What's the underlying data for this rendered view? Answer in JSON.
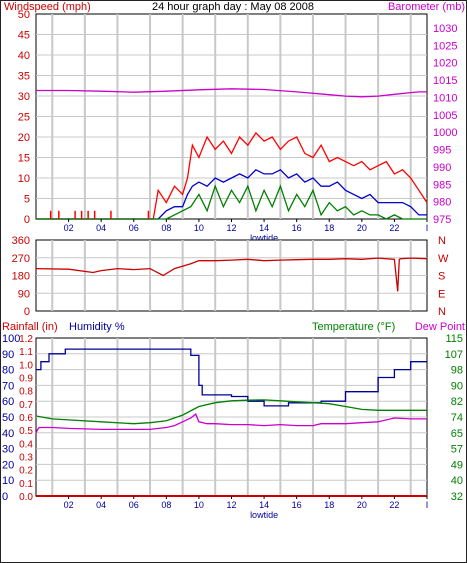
{
  "title": "24 hour graph day : May 08 2008",
  "colors": {
    "red": "#cc0000",
    "magenta": "#cc00cc",
    "green": "#008000",
    "blue": "#000099",
    "dark": "#000000",
    "windspeed": "#ff0000",
    "gust_green": "#008000",
    "avg_blue": "#0000cc",
    "pressure": "#cc00cc",
    "direction": "#cc0000",
    "humidity": "#000099",
    "temperature": "#008000",
    "dewpoint": "#cc00cc",
    "rainfall": "#cc0000",
    "grid": "#c8c8c8"
  },
  "x_tick_labels": [
    "02",
    "04",
    "06",
    "08",
    "10",
    "12",
    "14",
    "16",
    "18",
    "20",
    "22",
    "I"
  ],
  "x_sub_label": "lowtide",
  "chart_data": [
    {
      "type": "line",
      "panel": "wind-pressure",
      "left_axis_label": "Windspeed (mph)",
      "right_axis_label": "Barometer (mb)",
      "left_ticks": [
        "50",
        "45",
        "40",
        "35",
        "30",
        "25",
        "20",
        "15",
        "10",
        "5",
        "0"
      ],
      "right_ticks": [
        "1030",
        "1025",
        "1020",
        "1015",
        "1010",
        "1005",
        "1000",
        "995",
        "990",
        "985",
        "980",
        "975"
      ],
      "left_range": [
        0,
        50
      ],
      "right_range": [
        975,
        1030
      ],
      "x_range_hours": [
        0,
        24
      ],
      "series": [
        {
          "key": "barometer",
          "axis": "right",
          "x": [
            0,
            2,
            4,
            6,
            8,
            10,
            12,
            14,
            16,
            18,
            19,
            20,
            21,
            22,
            23,
            23.5,
            24
          ],
          "values": [
            1012,
            1012,
            1011.8,
            1011.5,
            1011.8,
            1012.2,
            1012.5,
            1012.3,
            1011.6,
            1010.8,
            1010.4,
            1010.2,
            1010.4,
            1010.9,
            1011.4,
            1011.6,
            1011.6
          ]
        },
        {
          "key": "gust",
          "axis": "left",
          "x": [
            0,
            2,
            4,
            6,
            7.2,
            7.5,
            8,
            8.5,
            9,
            9.3,
            9.6,
            10,
            10.5,
            11,
            11.5,
            12,
            12.5,
            13,
            13.5,
            14,
            14.5,
            15,
            15.5,
            16,
            16.5,
            17,
            17.5,
            18,
            18.5,
            19,
            19.5,
            20,
            20.5,
            21,
            21.5,
            22,
            22.5,
            23,
            23.5,
            24
          ],
          "values": [
            0,
            0,
            0,
            0,
            0,
            7,
            4,
            8,
            6,
            10,
            18,
            15,
            20,
            17,
            19,
            16,
            20,
            18,
            21,
            19,
            20,
            17,
            19,
            20,
            16,
            15,
            18,
            14,
            15,
            14,
            13,
            14,
            12,
            13,
            14,
            11,
            12,
            10,
            7,
            4
          ]
        },
        {
          "key": "average",
          "axis": "left",
          "x": [
            0,
            6,
            7.5,
            8,
            8.5,
            9,
            9.3,
            9.6,
            10,
            10.5,
            11,
            11.5,
            12,
            12.5,
            13,
            13.5,
            14,
            14.5,
            15,
            15.5,
            16,
            16.5,
            17,
            17.5,
            18,
            18.5,
            19,
            19.5,
            20,
            20.5,
            21,
            21.5,
            22,
            22.5,
            23,
            23.5,
            24
          ],
          "values": [
            0,
            0,
            0,
            2,
            3,
            3,
            6,
            8,
            9,
            8,
            10,
            9,
            10,
            11,
            10,
            12,
            11,
            11,
            12,
            10,
            11,
            9,
            10,
            8,
            8,
            9,
            7,
            6,
            5,
            6,
            4,
            4,
            4,
            4,
            3,
            1,
            1
          ]
        },
        {
          "key": "windspeed",
          "axis": "left",
          "x": [
            0,
            7.5,
            8,
            8.5,
            9,
            9.5,
            10,
            10.5,
            11,
            11.5,
            12,
            12.5,
            13,
            13.5,
            14,
            14.5,
            15,
            15.5,
            16,
            16.5,
            17,
            17.5,
            18,
            18.5,
            19,
            19.5,
            20,
            20.5,
            21,
            21.5,
            22,
            22.5,
            23,
            24
          ],
          "values": [
            0,
            0,
            0,
            1,
            2,
            3,
            6,
            2,
            8,
            3,
            7,
            4,
            8,
            2,
            7,
            3,
            8,
            2,
            6,
            3,
            7,
            1,
            4,
            2,
            3,
            1,
            2,
            1,
            1,
            0,
            1,
            0,
            0,
            0
          ]
        }
      ]
    },
    {
      "type": "line",
      "panel": "direction",
      "left_ticks": [
        "360",
        "270",
        "180",
        "90",
        "0"
      ],
      "right_ticks": [
        "N",
        "W",
        "S",
        "E",
        "N"
      ],
      "left_range": [
        0,
        360
      ],
      "x_range_hours": [
        0,
        24
      ],
      "series": [
        {
          "key": "direction",
          "x": [
            0,
            2,
            3.5,
            4,
            5,
            6,
            7,
            7.8,
            8.5,
            9.5,
            10,
            11,
            12,
            13,
            14,
            15,
            16,
            17,
            18,
            19,
            20,
            21,
            22,
            22.2,
            22.3,
            22.4,
            23,
            24
          ],
          "values": [
            215,
            212,
            195,
            205,
            215,
            210,
            215,
            180,
            215,
            240,
            255,
            255,
            258,
            262,
            255,
            258,
            260,
            262,
            262,
            265,
            262,
            268,
            262,
            100,
            262,
            265,
            268,
            265
          ]
        }
      ]
    },
    {
      "type": "line",
      "panel": "temp-humidity-rain",
      "left_axis_label_1": "Rainfall (in)",
      "left_axis_label_2": "Humidity %",
      "right_axis_label_1": "Temperature (°F)",
      "right_axis_label_2": "Dew Point",
      "humidity_ticks": [
        "100",
        "90",
        "80",
        "70",
        "60",
        "50",
        "40",
        "30",
        "20",
        "10",
        "0"
      ],
      "rain_ticks": [
        "1.2",
        "1.1",
        "1.0",
        "0.9",
        "0.8",
        "0.7",
        "0.6",
        "0.5",
        "0.4",
        "0.3",
        "0.2",
        "0.1",
        "0.0"
      ],
      "temp_ticks": [
        "115",
        "107",
        "98",
        "90",
        "82",
        "74",
        "65",
        "57",
        "49",
        "40",
        "32"
      ],
      "humidity_range": [
        0,
        100
      ],
      "temperature_range": [
        32,
        115
      ],
      "x_range_hours": [
        0,
        24
      ],
      "series": [
        {
          "key": "humidity",
          "step": true,
          "x": [
            0,
            0.3,
            0.8,
            1.8,
            8.5,
            9.5,
            10,
            10.2,
            12,
            13,
            14,
            15.5,
            17.5,
            19,
            21,
            22,
            23,
            24
          ],
          "values": [
            80,
            85,
            90,
            93,
            93,
            89,
            70,
            64,
            63,
            60,
            57,
            59,
            60,
            66,
            75,
            80,
            85,
            85
          ]
        },
        {
          "key": "temperature",
          "x": [
            0,
            1,
            2,
            4,
            6,
            7,
            8,
            9,
            10,
            11,
            12,
            13,
            14,
            15,
            16,
            17,
            18,
            19,
            20,
            21,
            22,
            23,
            24
          ],
          "values": [
            74,
            72.5,
            72,
            71,
            70,
            70.5,
            71.5,
            74.5,
            79,
            81,
            82,
            82.3,
            82.5,
            82,
            81.5,
            81,
            80.5,
            79,
            77.5,
            77,
            77,
            77,
            77
          ]
        },
        {
          "key": "dewpoint",
          "x": [
            0,
            0.1,
            0.2,
            1,
            2,
            4,
            6,
            7,
            8,
            8.5,
            9,
            9.5,
            9.8,
            10,
            10.5,
            11,
            12,
            13,
            14,
            15,
            16,
            17,
            17.5,
            18,
            19,
            20,
            21,
            22,
            23,
            24
          ],
          "values": [
            65,
            67,
            68,
            68,
            67.5,
            67,
            67,
            67,
            68,
            69,
            71,
            73,
            75,
            71,
            70,
            70,
            69.5,
            69.5,
            69,
            69.5,
            69,
            69,
            70,
            70,
            70,
            70.5,
            71,
            73,
            72.5,
            72.5
          ]
        },
        {
          "key": "rainfall",
          "x": [
            0,
            24
          ],
          "values": [
            0,
            0
          ]
        }
      ]
    }
  ]
}
